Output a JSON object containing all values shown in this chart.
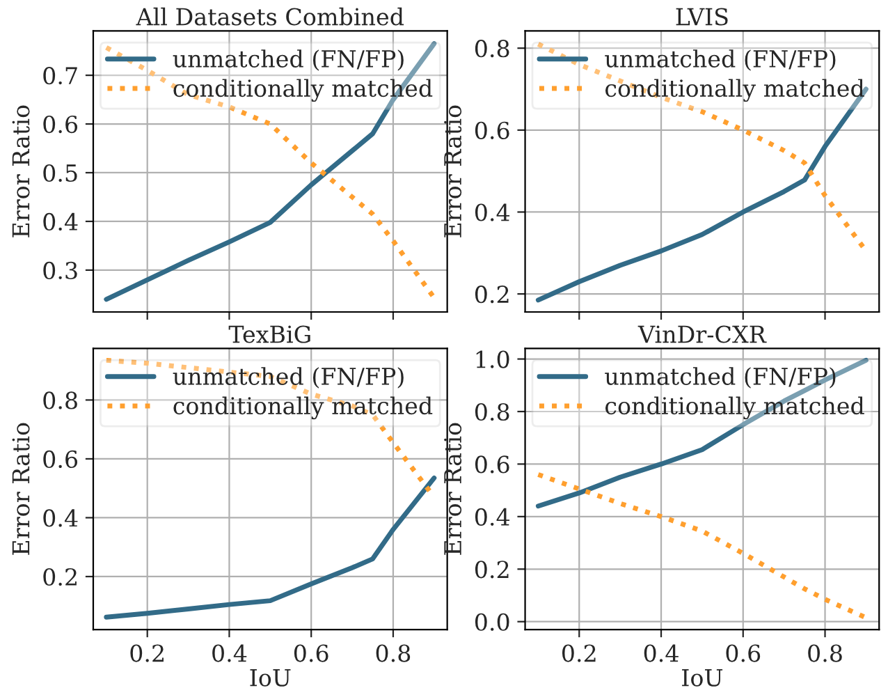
{
  "chart_data": [
    {
      "type": "line",
      "title": "All Datasets Combined",
      "ylabel": "Error Ratio",
      "x": [
        0.1,
        0.2,
        0.3,
        0.4,
        0.5,
        0.6,
        0.7,
        0.75,
        0.8,
        0.9
      ],
      "xlim": [
        0.068,
        0.932
      ],
      "xticks": [
        0.2,
        0.4,
        0.6,
        0.8
      ],
      "ylim": [
        0.214,
        0.791
      ],
      "yticks": [
        0.3,
        0.4,
        0.5,
        0.6,
        0.7
      ],
      "tick_labels": "y",
      "grid": true,
      "legend": "top",
      "series": [
        {
          "name": "unmatched (FN/FP)",
          "color": "#326b88",
          "line_style": "solid",
          "values": [
            0.24,
            0.28,
            0.32,
            0.358,
            0.398,
            0.475,
            0.545,
            0.58,
            0.65,
            0.765
          ]
        },
        {
          "name": "conditionally matched",
          "color": "#ff9f2e",
          "line_style": "dotted",
          "values": [
            0.757,
            0.71,
            0.66,
            0.635,
            0.6,
            0.52,
            0.45,
            0.415,
            0.36,
            0.243
          ]
        }
      ]
    },
    {
      "type": "line",
      "title": "LVIS",
      "ylabel": "Error Ratio",
      "x": [
        0.1,
        0.2,
        0.3,
        0.4,
        0.5,
        0.6,
        0.7,
        0.75,
        0.8,
        0.9
      ],
      "xlim": [
        0.068,
        0.932
      ],
      "xticks": [
        0.2,
        0.4,
        0.6,
        0.8
      ],
      "ylim": [
        0.156,
        0.842
      ],
      "yticks": [
        0.2,
        0.4,
        0.6,
        0.8
      ],
      "tick_labels": "y",
      "grid": true,
      "legend": "top",
      "series": [
        {
          "name": "unmatched (FN/FP)",
          "color": "#326b88",
          "line_style": "solid",
          "values": [
            0.185,
            0.23,
            0.27,
            0.305,
            0.345,
            0.4,
            0.45,
            0.478,
            0.56,
            0.7
          ]
        },
        {
          "name": "conditionally matched",
          "color": "#ff9f2e",
          "line_style": "dotted",
          "values": [
            0.81,
            0.76,
            0.72,
            0.68,
            0.645,
            0.6,
            0.55,
            0.52,
            0.44,
            0.305
          ]
        }
      ]
    },
    {
      "type": "line",
      "title": "TexBiG",
      "xlabel": "IoU",
      "ylabel": "Error Ratio",
      "x": [
        0.1,
        0.2,
        0.3,
        0.4,
        0.5,
        0.6,
        0.7,
        0.75,
        0.8,
        0.9
      ],
      "xlim": [
        0.068,
        0.932
      ],
      "xticks": [
        0.2,
        0.4,
        0.6,
        0.8
      ],
      "ylim": [
        0.02,
        0.975
      ],
      "yticks": [
        0.2,
        0.4,
        0.6,
        0.8
      ],
      "grid": true,
      "legend": "top",
      "series": [
        {
          "name": "unmatched (FN/FP)",
          "color": "#326b88",
          "line_style": "solid",
          "values": [
            0.062,
            0.075,
            0.09,
            0.105,
            0.118,
            0.175,
            0.23,
            0.26,
            0.36,
            0.535
          ]
        },
        {
          "name": "conditionally matched",
          "color": "#ff9f2e",
          "line_style": "dotted",
          "values": [
            0.935,
            0.925,
            0.91,
            0.895,
            0.88,
            0.82,
            0.78,
            0.75,
            0.655,
            0.47
          ]
        }
      ]
    },
    {
      "type": "line",
      "title": "VinDr-CXR",
      "xlabel": "IoU",
      "ylabel": "Error Ratio",
      "x": [
        0.1,
        0.2,
        0.3,
        0.4,
        0.5,
        0.6,
        0.7,
        0.75,
        0.8,
        0.9
      ],
      "xlim": [
        0.068,
        0.932
      ],
      "xticks": [
        0.2,
        0.4,
        0.6,
        0.8
      ],
      "ylim": [
        -0.03,
        1.04
      ],
      "yticks": [
        {
          "value": 0,
          "label": "0.0"
        },
        0.2,
        0.4,
        0.6,
        0.8,
        {
          "value": 1,
          "label": "1.0"
        }
      ],
      "grid": true,
      "legend": "top",
      "series": [
        {
          "name": "unmatched (FN/FP)",
          "color": "#326b88",
          "line_style": "solid",
          "values": [
            0.44,
            0.49,
            0.55,
            0.6,
            0.655,
            0.75,
            0.84,
            0.88,
            0.92,
            0.995
          ]
        },
        {
          "name": "conditionally matched",
          "color": "#ff9f2e",
          "line_style": "dotted",
          "values": [
            0.56,
            0.505,
            0.45,
            0.4,
            0.345,
            0.26,
            0.17,
            0.125,
            0.085,
            0.015
          ]
        }
      ]
    }
  ]
}
